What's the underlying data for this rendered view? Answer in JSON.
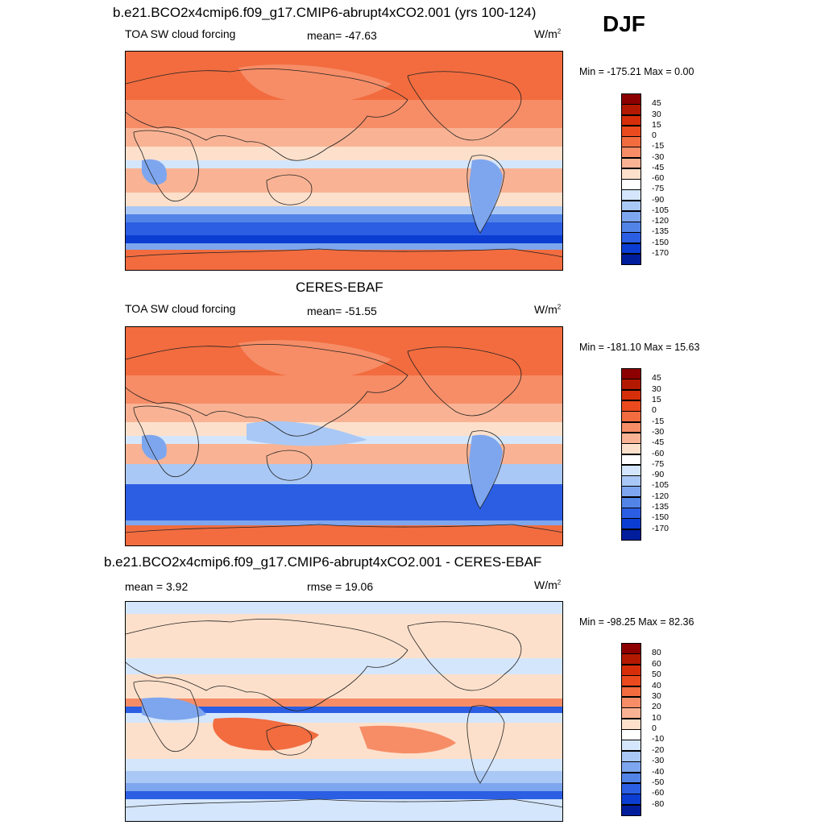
{
  "season": "DJF",
  "panels": [
    {
      "title": "b.e21.BCO2x4cmip6.f09_g17.CMIP6-abrupt4xCO2.001 (yrs 100-124)",
      "left_label": "TOA SW cloud forcing",
      "center_label": "mean= -47.63",
      "units": "W/m",
      "units_exp": "2",
      "minmax": "Min = -175.21 Max =   0.00",
      "colorbar": "abs"
    },
    {
      "title": "CERES-EBAF",
      "left_label": "TOA SW cloud forcing",
      "center_label": "mean= -51.55",
      "units": "W/m",
      "units_exp": "2",
      "minmax": "Min = -181.10 Max =  15.63",
      "colorbar": "abs"
    },
    {
      "title": "b.e21.BCO2x4cmip6.f09_g17.CMIP6-abrupt4xCO2.001 - CERES-EBAF",
      "left_label": "mean =   3.92",
      "center_label": "rmse =  19.06",
      "units": "W/m",
      "units_exp": "2",
      "minmax": "Min = -98.25 Max =  82.36",
      "colorbar": "diff"
    }
  ],
  "chart_data": {
    "type": "heatmap",
    "description_levels": {
      "abs": [
        "45",
        "30",
        "15",
        "0",
        "-15",
        "-30",
        "-45",
        "-60",
        "-75",
        "-90",
        "-105",
        "-120",
        "-135",
        "-150",
        "-170"
      ],
      "diff": [
        "80",
        "60",
        "50",
        "40",
        "30",
        "20",
        "10",
        "0",
        "-10",
        "-20",
        "-30",
        "-40",
        "-50",
        "-60",
        "-80"
      ]
    },
    "colors": [
      "#8c0000",
      "#b31900",
      "#d62e0a",
      "#ea4a1e",
      "#f26c3f",
      "#f68d67",
      "#f9b394",
      "#fde0cb",
      "#ffffff",
      "#d4e6fb",
      "#a9c8f5",
      "#7ea6ee",
      "#5284e8",
      "#2b5ee3",
      "#0b3dd2",
      "#001d9c",
      "#00007a"
    ],
    "colors_abs_n": 16,
    "colors_diff_n": 16
  }
}
